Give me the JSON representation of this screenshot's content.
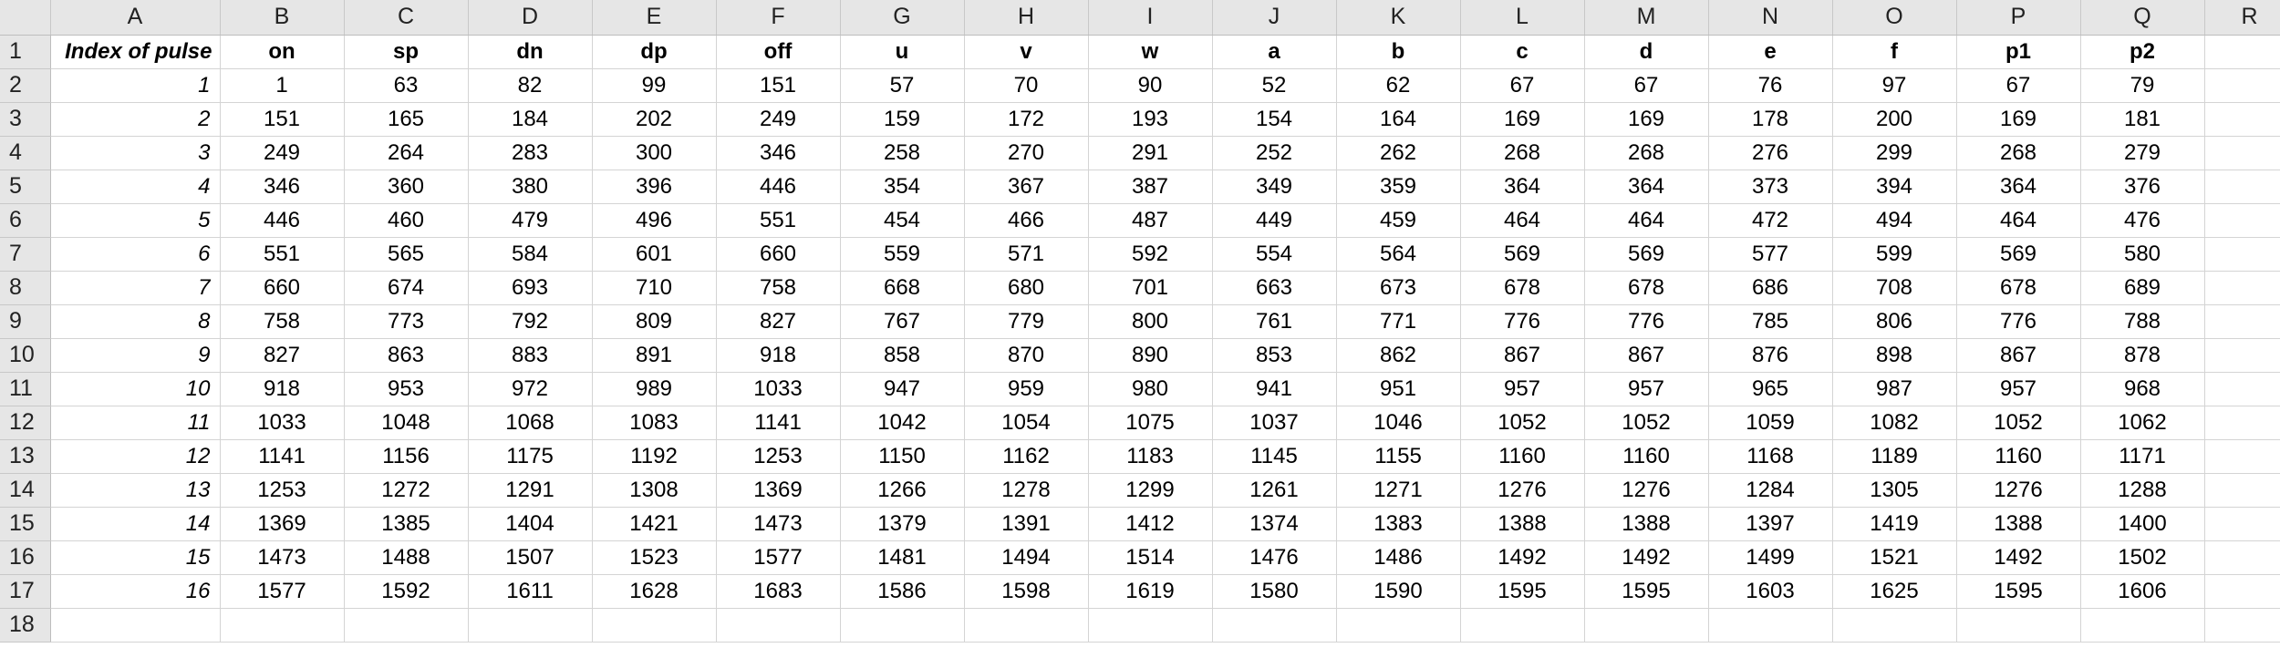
{
  "column_letters": [
    "A",
    "B",
    "C",
    "D",
    "E",
    "F",
    "G",
    "H",
    "I",
    "J",
    "K",
    "L",
    "M",
    "N",
    "O",
    "P",
    "Q",
    "R"
  ],
  "row_numbers": [
    "1",
    "2",
    "3",
    "4",
    "5",
    "6",
    "7",
    "8",
    "9",
    "10",
    "11",
    "12",
    "13",
    "14",
    "15",
    "16",
    "17",
    "18"
  ],
  "header_row": {
    "label": "Index of pulse",
    "columns": [
      "on",
      "sp",
      "dn",
      "dp",
      "off",
      "u",
      "v",
      "w",
      "a",
      "b",
      "c",
      "d",
      "e",
      "f",
      "p1",
      "p2"
    ]
  },
  "rows": [
    {
      "index": "1",
      "values": [
        "1",
        "63",
        "82",
        "99",
        "151",
        "57",
        "70",
        "90",
        "52",
        "62",
        "67",
        "67",
        "76",
        "97",
        "67",
        "79"
      ]
    },
    {
      "index": "2",
      "values": [
        "151",
        "165",
        "184",
        "202",
        "249",
        "159",
        "172",
        "193",
        "154",
        "164",
        "169",
        "169",
        "178",
        "200",
        "169",
        "181"
      ]
    },
    {
      "index": "3",
      "values": [
        "249",
        "264",
        "283",
        "300",
        "346",
        "258",
        "270",
        "291",
        "252",
        "262",
        "268",
        "268",
        "276",
        "299",
        "268",
        "279"
      ]
    },
    {
      "index": "4",
      "values": [
        "346",
        "360",
        "380",
        "396",
        "446",
        "354",
        "367",
        "387",
        "349",
        "359",
        "364",
        "364",
        "373",
        "394",
        "364",
        "376"
      ]
    },
    {
      "index": "5",
      "values": [
        "446",
        "460",
        "479",
        "496",
        "551",
        "454",
        "466",
        "487",
        "449",
        "459",
        "464",
        "464",
        "472",
        "494",
        "464",
        "476"
      ]
    },
    {
      "index": "6",
      "values": [
        "551",
        "565",
        "584",
        "601",
        "660",
        "559",
        "571",
        "592",
        "554",
        "564",
        "569",
        "569",
        "577",
        "599",
        "569",
        "580"
      ]
    },
    {
      "index": "7",
      "values": [
        "660",
        "674",
        "693",
        "710",
        "758",
        "668",
        "680",
        "701",
        "663",
        "673",
        "678",
        "678",
        "686",
        "708",
        "678",
        "689"
      ]
    },
    {
      "index": "8",
      "values": [
        "758",
        "773",
        "792",
        "809",
        "827",
        "767",
        "779",
        "800",
        "761",
        "771",
        "776",
        "776",
        "785",
        "806",
        "776",
        "788"
      ]
    },
    {
      "index": "9",
      "values": [
        "827",
        "863",
        "883",
        "891",
        "918",
        "858",
        "870",
        "890",
        "853",
        "862",
        "867",
        "867",
        "876",
        "898",
        "867",
        "878"
      ]
    },
    {
      "index": "10",
      "values": [
        "918",
        "953",
        "972",
        "989",
        "1033",
        "947",
        "959",
        "980",
        "941",
        "951",
        "957",
        "957",
        "965",
        "987",
        "957",
        "968"
      ]
    },
    {
      "index": "11",
      "values": [
        "1033",
        "1048",
        "1068",
        "1083",
        "1141",
        "1042",
        "1054",
        "1075",
        "1037",
        "1046",
        "1052",
        "1052",
        "1059",
        "1082",
        "1052",
        "1062"
      ]
    },
    {
      "index": "12",
      "values": [
        "1141",
        "1156",
        "1175",
        "1192",
        "1253",
        "1150",
        "1162",
        "1183",
        "1145",
        "1155",
        "1160",
        "1160",
        "1168",
        "1189",
        "1160",
        "1171"
      ]
    },
    {
      "index": "13",
      "values": [
        "1253",
        "1272",
        "1291",
        "1308",
        "1369",
        "1266",
        "1278",
        "1299",
        "1261",
        "1271",
        "1276",
        "1276",
        "1284",
        "1305",
        "1276",
        "1288"
      ]
    },
    {
      "index": "14",
      "values": [
        "1369",
        "1385",
        "1404",
        "1421",
        "1473",
        "1379",
        "1391",
        "1412",
        "1374",
        "1383",
        "1388",
        "1388",
        "1397",
        "1419",
        "1388",
        "1400"
      ]
    },
    {
      "index": "15",
      "values": [
        "1473",
        "1488",
        "1507",
        "1523",
        "1577",
        "1481",
        "1494",
        "1514",
        "1476",
        "1486",
        "1492",
        "1492",
        "1499",
        "1521",
        "1492",
        "1502"
      ]
    },
    {
      "index": "16",
      "values": [
        "1577",
        "1592",
        "1611",
        "1628",
        "1683",
        "1586",
        "1598",
        "1619",
        "1580",
        "1590",
        "1595",
        "1595",
        "1603",
        "1625",
        "1595",
        "1606"
      ]
    }
  ],
  "colors": {
    "header_background": "#e6e6e6",
    "gridline": "#d4d4d4",
    "text": "#000000"
  }
}
